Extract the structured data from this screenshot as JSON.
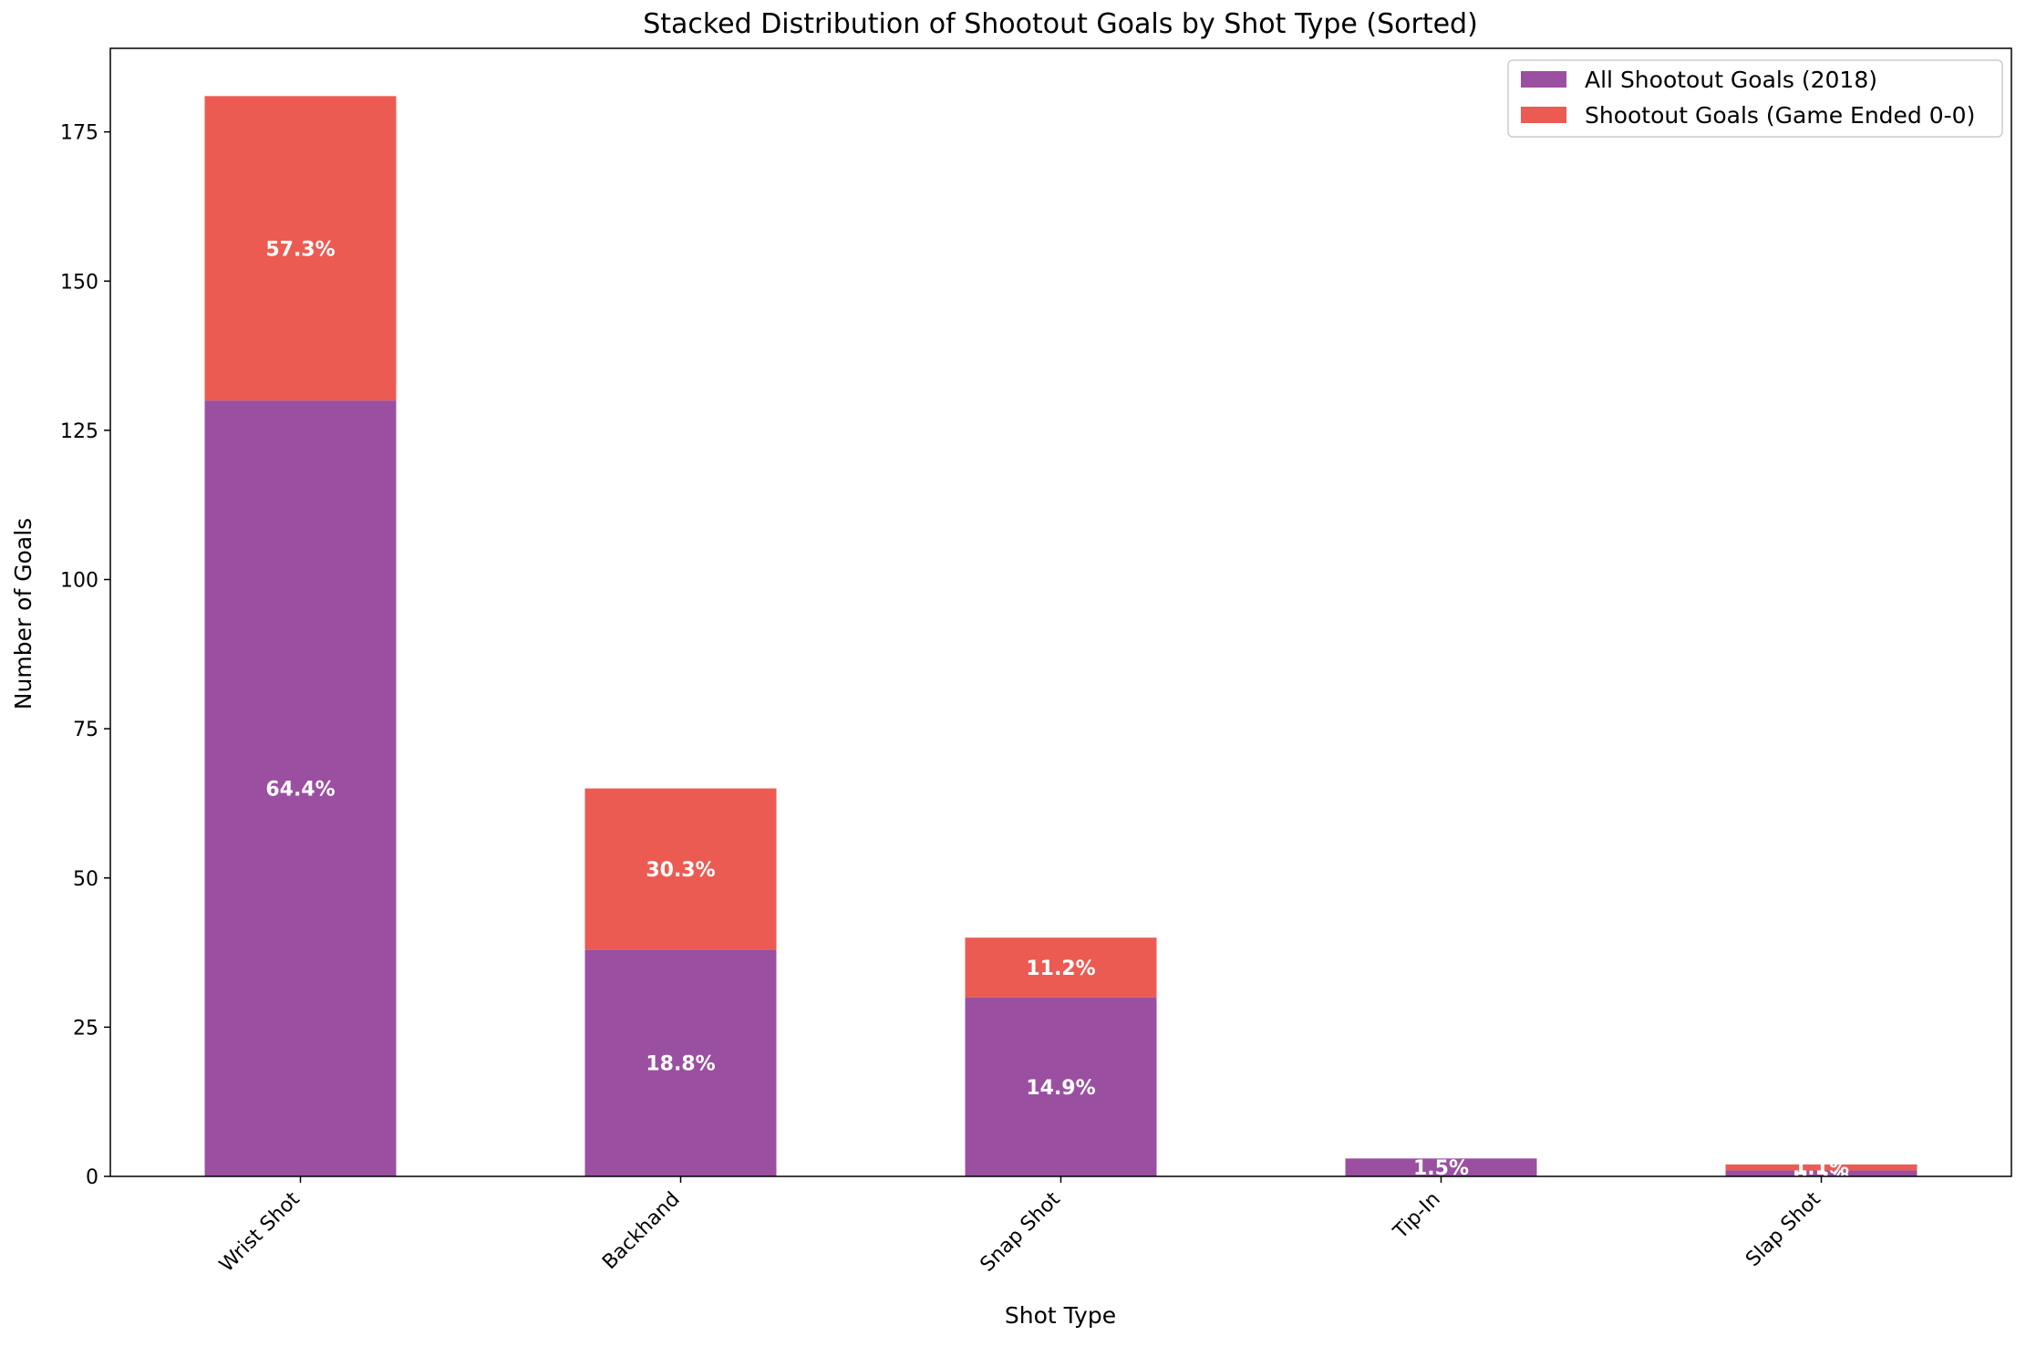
{
  "chart_data": {
    "type": "bar",
    "stacked": true,
    "title": "Stacked Distribution of Shootout Goals by Shot Type (Sorted)",
    "xlabel": "Shot Type",
    "ylabel": "Number of Goals",
    "categories": [
      "Wrist Shot",
      "Backhand",
      "Snap Shot",
      "Tip-In",
      "Slap Shot"
    ],
    "series": [
      {
        "name": "All Shootout Goals (2018)",
        "color": "#9a4fa1",
        "values": [
          130,
          38,
          30,
          3,
          1
        ],
        "labels": [
          "64.4%",
          "18.8%",
          "14.9%",
          "1.5%",
          "0.5%"
        ]
      },
      {
        "name": "Shootout Goals (Game Ended 0-0)",
        "color": "#ec5b52",
        "values": [
          51,
          27,
          10,
          0,
          1
        ],
        "labels": [
          "57.3%",
          "30.3%",
          "11.2%",
          "",
          "1.1%"
        ]
      }
    ],
    "ylim": [
      0,
      189
    ],
    "yticks": [
      0,
      25,
      50,
      75,
      100,
      125,
      150,
      175
    ],
    "legend_position": "top-right",
    "grid": false
  }
}
